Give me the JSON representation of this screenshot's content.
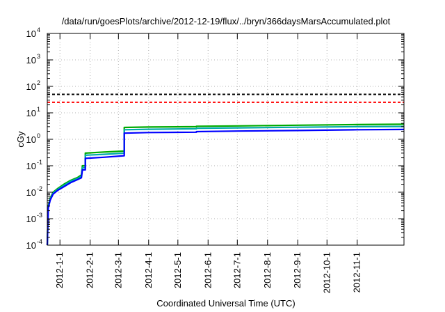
{
  "chart_data": {
    "type": "line",
    "title": "/data/run/goesPlots/archive/2012-12-19/flux/../bryn/366daysMarsAccumulated.plot",
    "xlabel": "Coordinated Universal Time (UTC)",
    "ylabel": "cGy",
    "yscale": "log",
    "ylim": [
      0.0001,
      10000
    ],
    "xlim": [
      "2011-12-19",
      "2012-12-19"
    ],
    "grid": true,
    "x_ticks": [
      "2012-1-1",
      "2012-2-1",
      "2012-3-1",
      "2012-4-1",
      "2012-5-1",
      "2012-6-1",
      "2012-7-1",
      "2012-8-1",
      "2012-9-1",
      "2012-10-1",
      "2012-11-1"
    ],
    "y_ticks": [
      {
        "base": "10",
        "exp": "-4",
        "value": 0.0001
      },
      {
        "base": "10",
        "exp": "-3",
        "value": 0.001
      },
      {
        "base": "10",
        "exp": "-2",
        "value": 0.01
      },
      {
        "base": "10",
        "exp": "-1",
        "value": 0.1
      },
      {
        "base": "10",
        "exp": "0",
        "value": 1
      },
      {
        "base": "10",
        "exp": "1",
        "value": 10
      },
      {
        "base": "10",
        "exp": "2",
        "value": 100
      },
      {
        "base": "10",
        "exp": "3",
        "value": 1000
      },
      {
        "base": "10",
        "exp": "4",
        "value": 10000
      }
    ],
    "reference_lines": [
      {
        "value": 50,
        "color": "#000000",
        "style": "dashed"
      },
      {
        "value": 25,
        "color": "#ff0000",
        "style": "dashed"
      }
    ],
    "series": [
      {
        "color": "#00aa00",
        "points": [
          [
            "2011-12-19",
            0.0001
          ],
          [
            "2011-12-20",
            0.003
          ],
          [
            "2011-12-22",
            0.006
          ],
          [
            "2011-12-25",
            0.01
          ],
          [
            "2011-12-30",
            0.014
          ],
          [
            "2012-1-5",
            0.02
          ],
          [
            "2012-1-12",
            0.028
          ],
          [
            "2012-1-19",
            0.036
          ],
          [
            "2012-1-23",
            0.045
          ],
          [
            "2012-1-24",
            0.1
          ],
          [
            "2012-1-27",
            0.1
          ],
          [
            "2012-1-27",
            0.3
          ],
          [
            "2012-2-15",
            0.33
          ],
          [
            "2012-3-7",
            0.36
          ],
          [
            "2012-3-7",
            2.8
          ],
          [
            "2012-4-1",
            2.9
          ],
          [
            "2012-5-20",
            3.0
          ],
          [
            "2012-5-20",
            3.1
          ],
          [
            "2012-7-1",
            3.2
          ],
          [
            "2012-9-1",
            3.4
          ],
          [
            "2012-11-1",
            3.6
          ],
          [
            "2012-12-19",
            3.7
          ]
        ]
      },
      {
        "color": "#00aaaa",
        "points": [
          [
            "2011-12-19",
            0.0001
          ],
          [
            "2011-12-20",
            0.0028
          ],
          [
            "2011-12-22",
            0.0055
          ],
          [
            "2011-12-25",
            0.0093
          ],
          [
            "2011-12-30",
            0.013
          ],
          [
            "2012-1-5",
            0.018
          ],
          [
            "2012-1-12",
            0.026
          ],
          [
            "2012-1-19",
            0.033
          ],
          [
            "2012-1-23",
            0.04
          ],
          [
            "2012-1-24",
            0.085
          ],
          [
            "2012-1-27",
            0.085
          ],
          [
            "2012-1-27",
            0.25
          ],
          [
            "2012-2-15",
            0.27
          ],
          [
            "2012-3-7",
            0.3
          ],
          [
            "2012-3-7",
            2.3
          ],
          [
            "2012-4-1",
            2.4
          ],
          [
            "2012-5-20",
            2.5
          ],
          [
            "2012-5-20",
            2.6
          ],
          [
            "2012-7-1",
            2.7
          ],
          [
            "2012-9-1",
            2.85
          ],
          [
            "2012-11-1",
            3.0
          ],
          [
            "2012-12-19",
            3.05
          ]
        ]
      },
      {
        "color": "#0000ff",
        "points": [
          [
            "2011-12-19",
            0.0001
          ],
          [
            "2011-12-20",
            0.0025
          ],
          [
            "2011-12-22",
            0.005
          ],
          [
            "2011-12-25",
            0.0085
          ],
          [
            "2011-12-30",
            0.012
          ],
          [
            "2012-1-5",
            0.016
          ],
          [
            "2012-1-12",
            0.023
          ],
          [
            "2012-1-19",
            0.03
          ],
          [
            "2012-1-23",
            0.035
          ],
          [
            "2012-1-24",
            0.07
          ],
          [
            "2012-1-27",
            0.07
          ],
          [
            "2012-1-27",
            0.19
          ],
          [
            "2012-2-15",
            0.21
          ],
          [
            "2012-3-7",
            0.24
          ],
          [
            "2012-3-7",
            1.7
          ],
          [
            "2012-4-1",
            1.8
          ],
          [
            "2012-5-20",
            1.85
          ],
          [
            "2012-5-20",
            1.95
          ],
          [
            "2012-7-1",
            2.05
          ],
          [
            "2012-9-1",
            2.15
          ],
          [
            "2012-11-1",
            2.3
          ],
          [
            "2012-12-19",
            2.35
          ]
        ]
      }
    ]
  }
}
